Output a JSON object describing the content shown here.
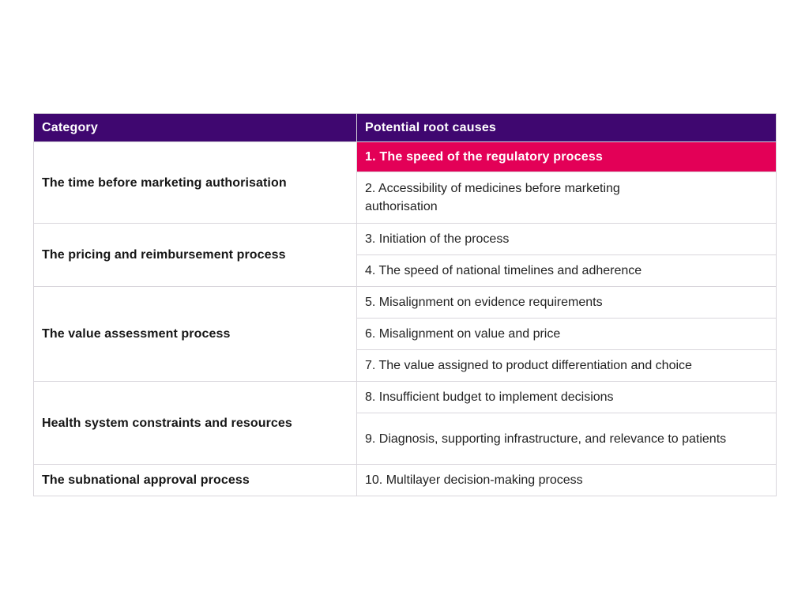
{
  "colors": {
    "header_bg": "#3f0770",
    "header_text": "#ffffff",
    "highlight_bg": "#e30057",
    "highlight_text": "#ffffff",
    "category_text": "#161616",
    "body_text": "#222222",
    "border": "#d9d6dc",
    "page_bg": "#ffffff"
  },
  "table": {
    "header": {
      "category": "Category",
      "causes": "Potential root causes"
    },
    "highlighted_cause": "1. The speed of the regulatory process",
    "groups": [
      {
        "category": "The time before marketing authorisation",
        "causes": [
          "1. The speed of the regulatory process",
          "2. Accessibility of medicines before marketing authorisation"
        ]
      },
      {
        "category": "The pricing and reimbursement process",
        "causes": [
          "3. Initiation of the process",
          "4. The speed of national timelines and adherence"
        ]
      },
      {
        "category": "The value assessment process",
        "causes": [
          "5. Misalignment on evidence requirements",
          "6. Misalignment on value and price",
          "7. The value assigned to product differentiation and choice"
        ]
      },
      {
        "category": "Health system constraints and resources",
        "causes": [
          "8. Insufficient budget to implement decisions",
          "9. Diagnosis, supporting infrastructure, and relevance to patients"
        ]
      },
      {
        "category": "The subnational approval process",
        "causes": [
          "10. Multilayer decision-making process"
        ]
      }
    ]
  }
}
